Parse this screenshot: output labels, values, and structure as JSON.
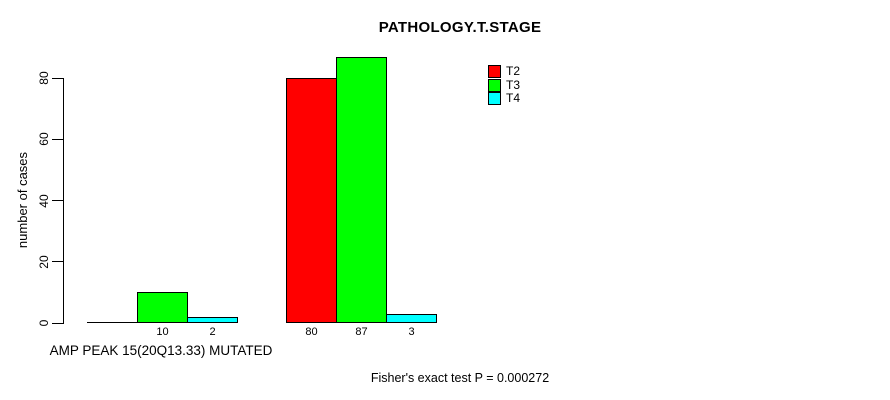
{
  "chart_data": {
    "type": "bar",
    "title": "PATHOLOGY.T.STAGE",
    "ylabel": "number of cases",
    "xlabel": "",
    "categories": [
      "AMP PEAK 15(20Q13.33) MUTATED",
      ""
    ],
    "series": [
      {
        "name": "T2",
        "color": "#FF0000",
        "values": [
          0,
          80
        ]
      },
      {
        "name": "T3",
        "color": "#00FF00",
        "values": [
          10,
          87
        ]
      },
      {
        "name": "T4",
        "color": "#00FFFF",
        "values": [
          2,
          3
        ]
      }
    ],
    "yticks": [
      0,
      20,
      40,
      60,
      80
    ],
    "ylim": [
      0,
      87
    ],
    "grid": false,
    "legend_position": "top-right",
    "bar_value_labels": [
      [
        null,
        "10",
        "2"
      ],
      [
        "80",
        "87",
        "3"
      ]
    ],
    "annotation": "Fisher's exact test P = 0.000272"
  },
  "colors": {
    "background": "#FFFFFF",
    "axis": "#000000",
    "text": "#000000",
    "t2": "#FF0000",
    "t3": "#00FF00",
    "t4": "#00FFFF"
  }
}
